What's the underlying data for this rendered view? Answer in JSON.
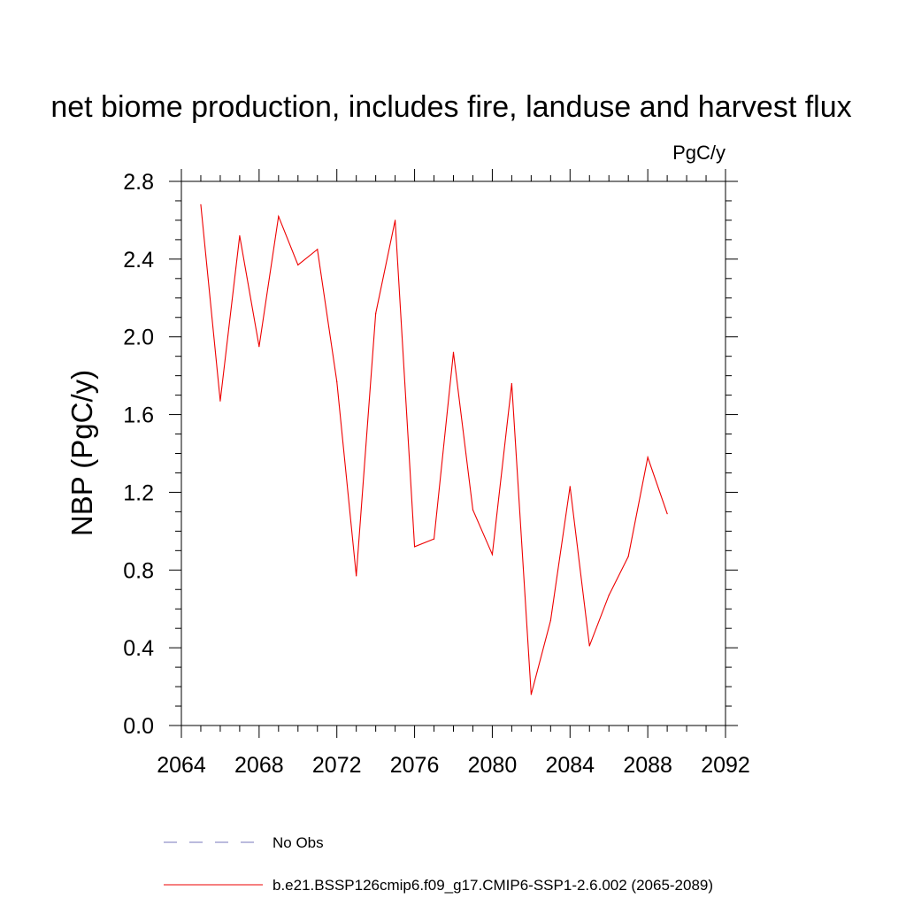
{
  "chart_data": {
    "type": "line",
    "title": "net biome production, includes fire, landuse and harvest flux",
    "units_label": "PgC/y",
    "xlabel": "",
    "ylabel": "NBP  (PgC/y)",
    "xlim": [
      2064,
      2092
    ],
    "ylim": [
      0.0,
      2.8
    ],
    "x_ticks": [
      "2064",
      "2068",
      "2072",
      "2076",
      "2080",
      "2084",
      "2088",
      "2092"
    ],
    "y_ticks": [
      "0.0",
      "0.4",
      "0.8",
      "1.2",
      "1.6",
      "2.0",
      "2.4",
      "2.8"
    ],
    "grid": false,
    "legend_position": "bottom",
    "legend": [
      {
        "label": "No Obs",
        "color": "#7777bb",
        "style": "dashed"
      },
      {
        "label": "b.e21.BSSP126cmip6.f09_g17.CMIP6-SSP1-2.6.002 (2065-2089)",
        "color": "#ee0000",
        "style": "solid"
      }
    ],
    "series": [
      {
        "name": "b.e21.BSSP126cmip6.f09_g17.CMIP6-SSP1-2.6.002 (2065-2089)",
        "color": "#ee0000",
        "x": [
          2065,
          2066,
          2067,
          2068,
          2069,
          2070,
          2071,
          2072,
          2073,
          2074,
          2075,
          2076,
          2077,
          2078,
          2079,
          2080,
          2081,
          2082,
          2083,
          2084,
          2085,
          2086,
          2087,
          2088,
          2089
        ],
        "values": [
          2.68,
          1.67,
          2.52,
          1.95,
          2.62,
          2.37,
          2.45,
          1.77,
          0.77,
          2.12,
          2.6,
          0.92,
          0.96,
          1.92,
          1.11,
          0.88,
          1.76,
          0.16,
          0.54,
          1.23,
          0.41,
          0.67,
          0.87,
          1.38,
          1.09
        ]
      }
    ]
  }
}
